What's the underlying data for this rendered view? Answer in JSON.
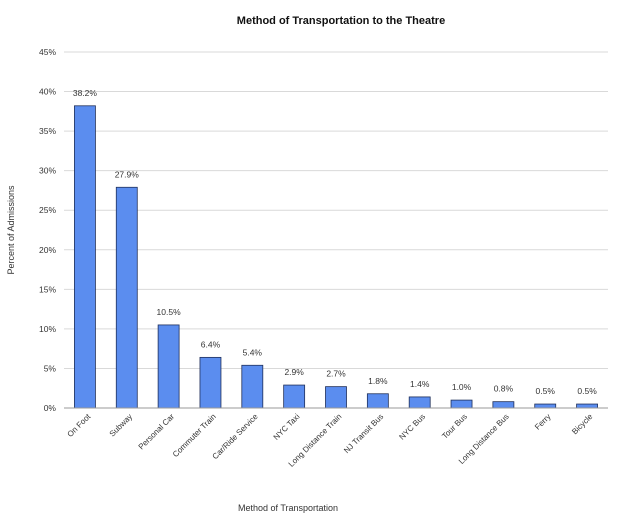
{
  "chart_data": {
    "type": "bar",
    "title": "Method of Transportation to the Theatre",
    "xlabel": "Method of Transportation",
    "ylabel": "Percent of Admissions",
    "ylim": [
      0,
      45
    ],
    "yticks": [
      "0%",
      "5%",
      "10%",
      "15%",
      "20%",
      "25%",
      "30%",
      "35%",
      "40%",
      "45%"
    ],
    "grid": true,
    "bar_color": "#5b8def",
    "bar_edge_color": "#1f2f5a",
    "categories": [
      "On Foot",
      "Subway",
      "Personal Car",
      "Commuter Train",
      "Car/Ride Service",
      "NYC Taxi",
      "Long Distance Train",
      "NJ Transit Bus",
      "NYC Bus",
      "Tour Bus",
      "Long Distance Bus",
      "Ferry",
      "Bicycle"
    ],
    "values": [
      38.2,
      27.9,
      10.5,
      6.4,
      5.4,
      2.9,
      2.7,
      1.8,
      1.4,
      1.0,
      0.8,
      0.5,
      0.5
    ],
    "data_labels": [
      "38.2%",
      "27.9%",
      "10.5%",
      "6.4%",
      "5.4%",
      "2.9%",
      "2.7%",
      "1.8%",
      "1.4%",
      "1.0%",
      "0.8%",
      "0.5%",
      "0.5%"
    ]
  }
}
